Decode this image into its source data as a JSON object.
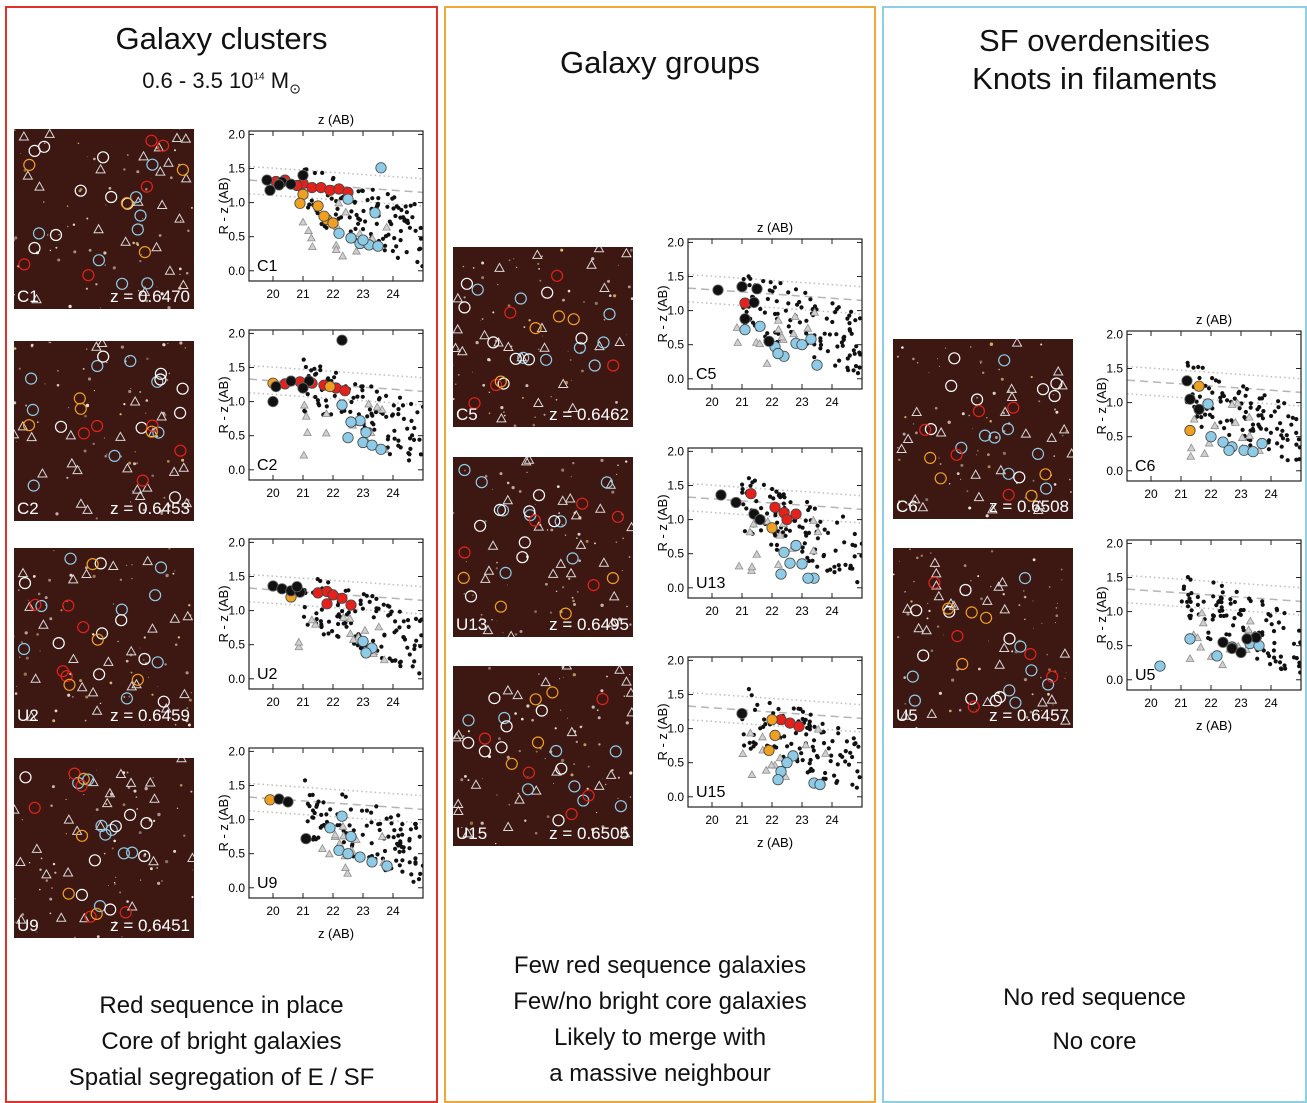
{
  "colors": {
    "clusters_border": "#e0322a",
    "groups_border": "#f0a83a",
    "sf_border": "#8fcfe2",
    "red_gal": "#e4221b",
    "orange_gal": "#f0a020",
    "blue_gal": "#8ecbe6",
    "black_gal": "#111111",
    "triangle": "#b4b4b4"
  },
  "panels": {
    "clusters": {
      "title": "Galaxy clusters",
      "mass_prefix": "0.6 - 3.5 10",
      "mass_exp": "14",
      "mass_unit": "M",
      "mass_sub": "⊙",
      "notes": [
        "Red sequence in place",
        "Core of bright galaxies",
        "Spatial segregation of E / SF"
      ]
    },
    "groups": {
      "title": "Galaxy groups",
      "notes": [
        "Few red sequence galaxies",
        "Few/no bright core galaxies",
        "Likely to merge with",
        "a massive neighbour"
      ]
    },
    "sf": {
      "title_lines": [
        "SF overdensities",
        "Knots in filaments"
      ],
      "notes": [
        "No red sequence",
        "No core"
      ]
    }
  },
  "axis_text": {
    "xlabel": "z (AB)",
    "ylabel": "R - z (AB)"
  },
  "structures": [
    {
      "id": "C1",
      "z": "z = 0.6470"
    },
    {
      "id": "C2",
      "z": "z = 0.6453"
    },
    {
      "id": "U2",
      "z": "z = 0.6459"
    },
    {
      "id": "U9",
      "z": "z = 0.6451"
    },
    {
      "id": "C5",
      "z": "z = 0.6462"
    },
    {
      "id": "U13",
      "z": "z = 0.6495"
    },
    {
      "id": "U15",
      "z": "z = 0.6505"
    },
    {
      "id": "C6",
      "z": "z = 0.6508"
    },
    {
      "id": "U5",
      "z": "z = 0.6457"
    }
  ],
  "chart_data": [
    {
      "type": "scatter",
      "name": "C1",
      "xlabel": "z (AB)",
      "ylabel": "R - z (AB)",
      "xlim": [
        19.2,
        25
      ],
      "ylim": [
        -0.15,
        2.05
      ],
      "xticks": [
        20,
        21,
        22,
        23,
        24
      ],
      "yticks": [
        0.0,
        0.5,
        1.0,
        1.5,
        2.0
      ],
      "red_sequence": [
        [
          19.2,
          1.33
        ],
        [
          25,
          1.15
        ]
      ],
      "series": [
        {
          "name": "red",
          "points": [
            [
              20.1,
              1.31
            ],
            [
              20.4,
              1.33
            ],
            [
              21.0,
              1.28
            ],
            [
              21.3,
              1.22
            ],
            [
              21.6,
              1.22
            ],
            [
              21.9,
              1.18
            ],
            [
              22.2,
              1.2
            ],
            [
              22.5,
              1.15
            ],
            [
              20.8,
              1.25
            ]
          ]
        },
        {
          "name": "orange",
          "points": [
            [
              21.0,
              1.12
            ],
            [
              21.5,
              0.95
            ],
            [
              21.8,
              0.75
            ],
            [
              22.0,
              0.7
            ],
            [
              20.9,
              0.99
            ],
            [
              21.7,
              0.8
            ]
          ]
        },
        {
          "name": "blue",
          "points": [
            [
              23.6,
              1.51
            ],
            [
              22.5,
              1.05
            ],
            [
              23.4,
              0.85
            ],
            [
              22.2,
              0.55
            ],
            [
              22.6,
              0.48
            ],
            [
              22.9,
              0.4
            ],
            [
              23.2,
              0.38
            ],
            [
              23.5,
              0.36
            ],
            [
              23.0,
              0.45
            ]
          ]
        },
        {
          "name": "black",
          "points": [
            [
              19.8,
              1.33
            ],
            [
              20.3,
              1.3
            ],
            [
              20.6,
              1.27
            ],
            [
              19.9,
              1.18
            ],
            [
              21.0,
              1.4
            ],
            [
              20.2,
              1.26
            ]
          ]
        }
      ]
    },
    {
      "type": "scatter",
      "name": "C2",
      "xlabel": "z (AB)",
      "ylabel": "R - z (AB)",
      "xlim": [
        19.2,
        25
      ],
      "ylim": [
        -0.15,
        2.05
      ],
      "xticks": [
        20,
        21,
        22,
        23,
        24
      ],
      "yticks": [
        0.0,
        0.5,
        1.0,
        1.5,
        2.0
      ],
      "red_sequence": [
        [
          19.2,
          1.33
        ],
        [
          25,
          1.15
        ]
      ],
      "series": [
        {
          "name": "red",
          "points": [
            [
              20.4,
              1.26
            ],
            [
              20.9,
              1.29
            ],
            [
              21.3,
              1.27
            ],
            [
              21.7,
              1.24
            ],
            [
              22.1,
              1.2
            ],
            [
              22.4,
              1.16
            ]
          ]
        },
        {
          "name": "orange",
          "points": [
            [
              20.0,
              1.27
            ],
            [
              21.9,
              1.22
            ]
          ]
        },
        {
          "name": "blue",
          "points": [
            [
              22.9,
              0.72
            ],
            [
              22.6,
              0.7
            ],
            [
              23.1,
              0.55
            ],
            [
              22.5,
              0.47
            ],
            [
              23.0,
              0.4
            ],
            [
              23.3,
              0.36
            ],
            [
              23.6,
              0.3
            ],
            [
              22.3,
              0.95
            ]
          ]
        },
        {
          "name": "black",
          "points": [
            [
              22.3,
              1.9
            ],
            [
              20.1,
              1.22
            ],
            [
              20.6,
              1.3
            ],
            [
              21.2,
              1.3
            ],
            [
              20.0,
              1.0
            ],
            [
              21.0,
              1.2
            ]
          ]
        }
      ]
    },
    {
      "type": "scatter",
      "name": "U2",
      "xlabel": "z (AB)",
      "ylabel": "R - z (AB)",
      "xlim": [
        19.2,
        25
      ],
      "ylim": [
        -0.15,
        2.05
      ],
      "xticks": [
        20,
        21,
        22,
        23,
        24
      ],
      "yticks": [
        0.0,
        0.5,
        1.0,
        1.5,
        2.0
      ],
      "red_sequence": [
        [
          19.2,
          1.33
        ],
        [
          25,
          1.15
        ]
      ],
      "series": [
        {
          "name": "red",
          "points": [
            [
              21.5,
              1.26
            ],
            [
              21.8,
              1.28
            ],
            [
              22.0,
              1.23
            ],
            [
              21.8,
              1.1
            ],
            [
              22.3,
              1.18
            ],
            [
              22.6,
              1.08
            ]
          ]
        },
        {
          "name": "orange",
          "points": [
            [
              20.6,
              1.2
            ]
          ]
        },
        {
          "name": "blue",
          "points": [
            [
              23.0,
              0.55
            ],
            [
              23.3,
              0.45
            ],
            [
              23.1,
              0.38
            ]
          ]
        },
        {
          "name": "black",
          "points": [
            [
              20.0,
              1.36
            ],
            [
              20.3,
              1.32
            ],
            [
              20.6,
              1.29
            ],
            [
              20.9,
              1.27
            ],
            [
              20.8,
              1.35
            ]
          ]
        }
      ]
    },
    {
      "type": "scatter",
      "name": "U9",
      "xlabel": "z (AB)",
      "ylabel": "R - z (AB)",
      "xlim": [
        19.2,
        25
      ],
      "ylim": [
        -0.15,
        2.05
      ],
      "xticks": [
        20,
        21,
        22,
        23,
        24
      ],
      "yticks": [
        0.0,
        0.5,
        1.0,
        1.5,
        2.0
      ],
      "red_sequence": [
        [
          19.2,
          1.33
        ],
        [
          25,
          1.15
        ]
      ],
      "series": [
        {
          "name": "red",
          "points": []
        },
        {
          "name": "orange",
          "points": [
            [
              19.9,
              1.29
            ]
          ]
        },
        {
          "name": "blue",
          "points": [
            [
              22.3,
              1.05
            ],
            [
              21.9,
              0.88
            ],
            [
              22.6,
              0.75
            ],
            [
              22.2,
              0.55
            ],
            [
              22.5,
              0.5
            ],
            [
              22.9,
              0.45
            ],
            [
              23.3,
              0.38
            ],
            [
              23.8,
              0.32
            ]
          ]
        },
        {
          "name": "black",
          "points": [
            [
              20.2,
              1.3
            ],
            [
              20.5,
              1.26
            ],
            [
              21.1,
              0.72
            ]
          ]
        }
      ]
    },
    {
      "type": "scatter",
      "name": "C5",
      "xlabel": "z (AB)",
      "ylabel": "R - z (AB)",
      "xlim": [
        19.2,
        25
      ],
      "ylim": [
        -0.15,
        2.05
      ],
      "xticks": [
        20,
        21,
        22,
        23,
        24
      ],
      "yticks": [
        0.0,
        0.5,
        1.0,
        1.5,
        2.0
      ],
      "red_sequence": [
        [
          19.2,
          1.33
        ],
        [
          25,
          1.15
        ]
      ],
      "series": [
        {
          "name": "red",
          "points": [
            [
              21.1,
              1.11
            ]
          ]
        },
        {
          "name": "orange",
          "points": []
        },
        {
          "name": "blue",
          "points": [
            [
              21.1,
              0.72
            ],
            [
              21.6,
              0.77
            ],
            [
              22.1,
              0.47
            ],
            [
              22.4,
              0.33
            ],
            [
              22.8,
              0.52
            ],
            [
              23.0,
              0.5
            ],
            [
              23.3,
              0.58
            ],
            [
              22.2,
              0.37
            ],
            [
              23.5,
              0.2
            ]
          ]
        },
        {
          "name": "black",
          "points": [
            [
              20.2,
              1.3
            ],
            [
              21.0,
              1.35
            ],
            [
              21.5,
              1.32
            ],
            [
              21.4,
              1.12
            ],
            [
              21.1,
              0.88
            ],
            [
              21.9,
              0.55
            ]
          ]
        }
      ]
    },
    {
      "type": "scatter",
      "name": "U13",
      "xlabel": "z (AB)",
      "ylabel": "R - z (AB)",
      "xlim": [
        19.2,
        25
      ],
      "ylim": [
        -0.15,
        2.05
      ],
      "xticks": [
        20,
        21,
        22,
        23,
        24
      ],
      "yticks": [
        0.0,
        0.5,
        1.0,
        1.5,
        2.0
      ],
      "red_sequence": [
        [
          19.2,
          1.33
        ],
        [
          25,
          1.15
        ]
      ],
      "series": [
        {
          "name": "red",
          "points": [
            [
              21.3,
              1.38
            ],
            [
              22.1,
              1.18
            ],
            [
              22.4,
              1.1
            ],
            [
              22.8,
              1.08
            ],
            [
              22.5,
              1.0
            ]
          ]
        },
        {
          "name": "orange",
          "points": [
            [
              22.0,
              0.88
            ]
          ]
        },
        {
          "name": "blue",
          "points": [
            [
              22.4,
              0.52
            ],
            [
              22.8,
              0.62
            ],
            [
              22.6,
              0.36
            ],
            [
              23.0,
              0.35
            ],
            [
              22.3,
              0.2
            ],
            [
              23.4,
              0.14
            ],
            [
              23.2,
              0.14
            ]
          ]
        },
        {
          "name": "black",
          "points": [
            [
              20.3,
              1.36
            ],
            [
              20.8,
              1.25
            ],
            [
              21.4,
              1.08
            ],
            [
              21.6,
              1.0
            ]
          ]
        }
      ]
    },
    {
      "type": "scatter",
      "name": "U15",
      "xlabel": "z (AB)",
      "ylabel": "R - z (AB)",
      "xlim": [
        19.2,
        25
      ],
      "ylim": [
        -0.15,
        2.05
      ],
      "xticks": [
        20,
        21,
        22,
        23,
        24
      ],
      "yticks": [
        0.0,
        0.5,
        1.0,
        1.5,
        2.0
      ],
      "red_sequence": [
        [
          19.2,
          1.33
        ],
        [
          25,
          1.15
        ]
      ],
      "series": [
        {
          "name": "red",
          "points": [
            [
              22.3,
              1.13
            ],
            [
              22.6,
              1.08
            ],
            [
              22.9,
              1.03
            ]
          ]
        },
        {
          "name": "orange",
          "points": [
            [
              22.0,
              1.13
            ],
            [
              22.1,
              0.9
            ],
            [
              21.9,
              0.68
            ]
          ]
        },
        {
          "name": "blue",
          "points": [
            [
              22.7,
              0.6
            ],
            [
              22.5,
              0.5
            ],
            [
              22.3,
              0.37
            ],
            [
              22.2,
              0.25
            ],
            [
              23.4,
              0.2
            ],
            [
              23.6,
              0.18
            ]
          ]
        },
        {
          "name": "black",
          "points": [
            [
              21.0,
              1.22
            ]
          ]
        }
      ]
    },
    {
      "type": "scatter",
      "name": "C6",
      "xlabel": "z (AB)",
      "ylabel": "R - z (AB)",
      "xlim": [
        19.2,
        25
      ],
      "ylim": [
        -0.15,
        2.05
      ],
      "xticks": [
        20,
        21,
        22,
        23,
        24
      ],
      "yticks": [
        0.0,
        0.5,
        1.0,
        1.5,
        2.0
      ],
      "red_sequence": [
        [
          19.2,
          1.33
        ],
        [
          25,
          1.15
        ]
      ],
      "series": [
        {
          "name": "red",
          "points": []
        },
        {
          "name": "orange",
          "points": [
            [
              21.6,
              1.24
            ],
            [
              21.3,
              0.59
            ]
          ]
        },
        {
          "name": "blue",
          "points": [
            [
              21.9,
              0.98
            ],
            [
              22.0,
              0.5
            ],
            [
              22.4,
              0.42
            ],
            [
              22.7,
              0.35
            ],
            [
              23.1,
              0.3
            ],
            [
              23.4,
              0.28
            ],
            [
              22.6,
              0.3
            ],
            [
              23.7,
              0.4
            ]
          ]
        },
        {
          "name": "black",
          "points": [
            [
              21.2,
              1.32
            ],
            [
              21.3,
              1.05
            ],
            [
              21.6,
              0.9
            ]
          ]
        }
      ]
    },
    {
      "type": "scatter",
      "name": "U5",
      "xlabel": "z (AB)",
      "ylabel": "R - z (AB)",
      "xlim": [
        19.2,
        25
      ],
      "ylim": [
        -0.15,
        2.05
      ],
      "xticks": [
        20,
        21,
        22,
        23,
        24
      ],
      "yticks": [
        0.0,
        0.5,
        1.0,
        1.5,
        2.0
      ],
      "red_sequence": [
        [
          19.2,
          1.33
        ],
        [
          25,
          1.15
        ]
      ],
      "series": [
        {
          "name": "red",
          "points": []
        },
        {
          "name": "orange",
          "points": []
        },
        {
          "name": "blue",
          "points": [
            [
              20.3,
              0.2
            ],
            [
              21.3,
              0.6
            ],
            [
              22.2,
              0.35
            ],
            [
              23.3,
              0.53
            ],
            [
              23.6,
              0.5
            ],
            [
              22.7,
              0.48
            ]
          ]
        },
        {
          "name": "black",
          "points": [
            [
              22.4,
              0.55
            ],
            [
              22.7,
              0.46
            ],
            [
              23.0,
              0.4
            ],
            [
              23.5,
              0.62
            ],
            [
              23.2,
              0.6
            ]
          ]
        }
      ]
    }
  ]
}
